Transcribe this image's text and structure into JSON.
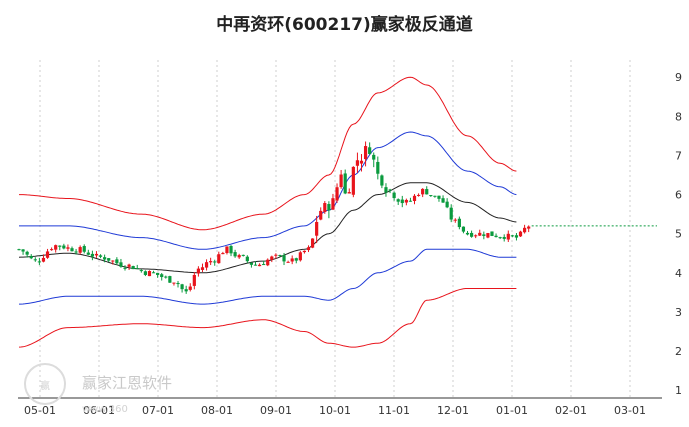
{
  "title": "中再资环(600217)赢家极反通道",
  "watermark": {
    "text": "赢家江恩软件",
    "url": "www.360"
  },
  "chart_data": {
    "type": "candlestick",
    "title": "中再资环(600217)赢家极反通道",
    "x_tick_labels": [
      "05-01",
      "06-01",
      "07-01",
      "08-01",
      "09-01",
      "10-01",
      "11-01",
      "12-01",
      "01-01",
      "02-01",
      "03-01"
    ],
    "y_tick_labels": [
      "1",
      "2",
      "3",
      "4",
      "5",
      "6",
      "7",
      "8",
      "9"
    ],
    "ylim": [
      0.8,
      9.9
    ],
    "grid": {
      "vertical": true,
      "horizontal": false
    },
    "colors": {
      "up": "#e8141c",
      "down": "#0a9a3e",
      "outer_band": "#e8141c",
      "inner_band": "#1f3ad6",
      "mid_line": "#222222",
      "last_price": "#0a9a3e"
    },
    "last_price": 5.2,
    "price_path": [
      [
        0,
        4.6
      ],
      [
        4,
        4.3
      ],
      [
        9,
        4.7
      ],
      [
        14,
        4.6
      ],
      [
        20,
        4.4
      ],
      [
        26,
        4.2
      ],
      [
        32,
        4.0
      ],
      [
        38,
        3.8
      ],
      [
        41,
        3.5
      ],
      [
        44,
        4.1
      ],
      [
        47,
        4.3
      ],
      [
        51,
        4.6
      ],
      [
        54,
        4.4
      ],
      [
        58,
        4.2
      ],
      [
        63,
        4.4
      ],
      [
        67,
        4.3
      ],
      [
        71,
        4.6
      ],
      [
        74,
        5.6
      ],
      [
        77,
        5.8
      ],
      [
        79,
        6.6
      ],
      [
        80,
        6.0
      ],
      [
        83,
        6.9
      ],
      [
        86,
        7.2
      ],
      [
        88,
        6.5
      ],
      [
        91,
        6.1
      ],
      [
        95,
        5.8
      ],
      [
        99,
        6.1
      ],
      [
        103,
        5.9
      ],
      [
        107,
        5.3
      ],
      [
        110,
        5.0
      ],
      [
        114,
        5.0
      ],
      [
        118,
        4.95
      ],
      [
        122,
        4.9
      ],
      [
        125,
        5.2
      ]
    ],
    "outer_upper": [
      [
        0,
        6.0
      ],
      [
        12,
        5.9
      ],
      [
        30,
        5.5
      ],
      [
        45,
        5.1
      ],
      [
        60,
        5.5
      ],
      [
        70,
        6.0
      ],
      [
        76,
        6.5
      ],
      [
        82,
        7.8
      ],
      [
        88,
        8.6
      ],
      [
        96,
        9.0
      ],
      [
        100,
        8.8
      ],
      [
        110,
        7.5
      ],
      [
        118,
        6.8
      ],
      [
        122,
        6.6
      ]
    ],
    "inner_upper": [
      [
        0,
        5.2
      ],
      [
        12,
        5.2
      ],
      [
        30,
        4.9
      ],
      [
        45,
        4.6
      ],
      [
        60,
        4.9
      ],
      [
        70,
        5.2
      ],
      [
        76,
        5.6
      ],
      [
        82,
        6.5
      ],
      [
        88,
        7.2
      ],
      [
        96,
        7.6
      ],
      [
        100,
        7.5
      ],
      [
        110,
        6.6
      ],
      [
        118,
        6.2
      ],
      [
        122,
        6.0
      ]
    ],
    "mid_line": [
      [
        0,
        4.4
      ],
      [
        12,
        4.5
      ],
      [
        30,
        4.1
      ],
      [
        45,
        4.0
      ],
      [
        60,
        4.3
      ],
      [
        70,
        4.6
      ],
      [
        76,
        5.0
      ],
      [
        82,
        5.6
      ],
      [
        88,
        6.0
      ],
      [
        96,
        6.3
      ],
      [
        100,
        6.3
      ],
      [
        110,
        5.8
      ],
      [
        118,
        5.4
      ],
      [
        122,
        5.3
      ]
    ],
    "inner_lower": [
      [
        0,
        3.2
      ],
      [
        12,
        3.4
      ],
      [
        30,
        3.4
      ],
      [
        45,
        3.2
      ],
      [
        60,
        3.4
      ],
      [
        70,
        3.4
      ],
      [
        76,
        3.3
      ],
      [
        82,
        3.6
      ],
      [
        88,
        4.0
      ],
      [
        96,
        4.3
      ],
      [
        100,
        4.6
      ],
      [
        110,
        4.6
      ],
      [
        118,
        4.4
      ],
      [
        122,
        4.4
      ]
    ],
    "outer_lower": [
      [
        0,
        2.1
      ],
      [
        12,
        2.6
      ],
      [
        30,
        2.7
      ],
      [
        45,
        2.6
      ],
      [
        60,
        2.8
      ],
      [
        70,
        2.5
      ],
      [
        76,
        2.2
      ],
      [
        82,
        2.1
      ],
      [
        88,
        2.2
      ],
      [
        96,
        2.7
      ],
      [
        100,
        3.3
      ],
      [
        110,
        3.6
      ],
      [
        118,
        3.6
      ],
      [
        122,
        3.6
      ]
    ]
  }
}
